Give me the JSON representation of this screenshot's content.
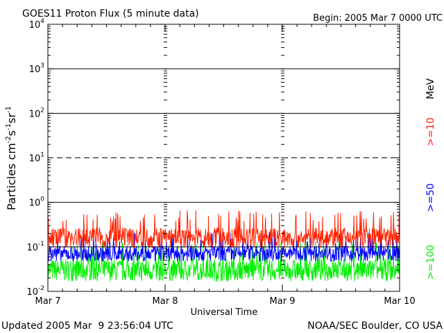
{
  "chart_data": {
    "type": "line",
    "title": "GOES11 Proton Flux (5 minute data)",
    "begin_label": "Begin: 2005 Mar 7 0000 UTC",
    "ylabel_parts": {
      "base": "Particles cm",
      "exp1": "-2",
      "mid1": "s",
      "exp2": "-1",
      "mid2": "sr",
      "exp3": "-1"
    },
    "xlabel": "Universal Time",
    "y_scale": "log",
    "ylim": [
      0.01,
      10000
    ],
    "y_ticks": [
      {
        "value": 10000,
        "base": "10",
        "exp": "4"
      },
      {
        "value": 1000,
        "base": "10",
        "exp": "3"
      },
      {
        "value": 100,
        "base": "10",
        "exp": "2"
      },
      {
        "value": 10,
        "base": "10",
        "exp": "1"
      },
      {
        "value": 1,
        "base": "10",
        "exp": "0"
      },
      {
        "value": 0.1,
        "base": "10",
        "exp": "-1"
      },
      {
        "value": 0.01,
        "base": "10",
        "exp": "-2"
      }
    ],
    "xlim": [
      0,
      3
    ],
    "x_ticks": [
      {
        "value": 0,
        "label": "Mar 7"
      },
      {
        "value": 1,
        "label": "Mar 8"
      },
      {
        "value": 2,
        "label": "Mar 9"
      },
      {
        "value": 3,
        "label": "Mar 10"
      }
    ],
    "threshold_lines": [
      {
        "value": 1000,
        "style": "solid"
      },
      {
        "value": 100,
        "style": "solid"
      },
      {
        "value": 10,
        "style": "dashed"
      },
      {
        "value": 1,
        "style": "solid"
      },
      {
        "value": 0.1,
        "style": "solid"
      }
    ],
    "legend_unit": "MeV",
    "series": [
      {
        "name": ">=10",
        "color": "#ff2200",
        "baseline": 0.16,
        "spread": 0.45,
        "spike": 0.5
      },
      {
        "name": ">=50",
        "color": "#0000ff",
        "baseline": 0.07,
        "spread": 0.35,
        "spike": 0.16
      },
      {
        "name": ">=100",
        "color": "#00ee00",
        "baseline": 0.03,
        "spread": 0.5,
        "spike": 0.1
      }
    ]
  },
  "footer": {
    "updated": "Updated 2005 Mar  9 23:56:04 UTC",
    "credit": "NOAA/SEC Boulder, CO USA"
  }
}
